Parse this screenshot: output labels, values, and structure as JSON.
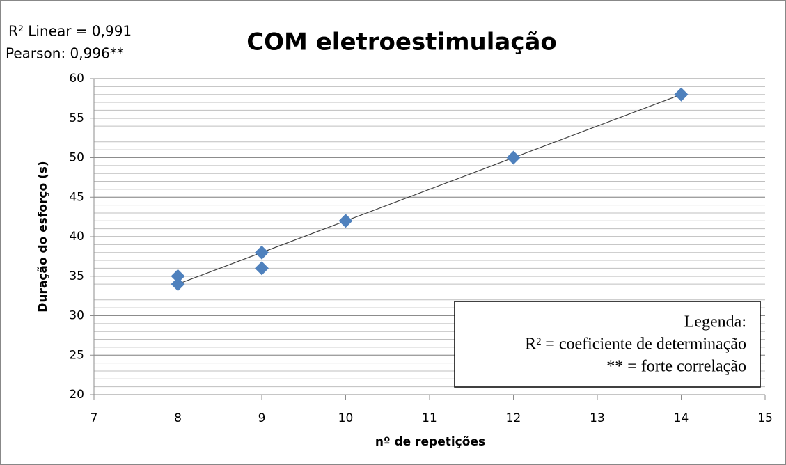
{
  "chart_data": {
    "type": "scatter",
    "title": "COM eletroestimulação",
    "annotations": [
      "R² Linear = 0,991",
      "Pearson: 0,996**"
    ],
    "legend_box": [
      "Legenda:",
      "R² = coeficiente de determinação",
      "** = forte correlação"
    ],
    "xlabel": "nº de repetições",
    "ylabel": "Duração do esforço (s)",
    "series": [
      {
        "name": "COM eletroestimulação",
        "color": "#4f81bd",
        "x": [
          8,
          8,
          9,
          9,
          10,
          12,
          14
        ],
        "values": [
          34,
          35,
          38,
          36,
          42,
          50,
          58
        ]
      }
    ],
    "trendline": {
      "x": [
        8,
        14
      ],
      "values": [
        34,
        58
      ],
      "color": "#404040"
    },
    "xlim": [
      7,
      15
    ],
    "xticks": [
      7,
      8,
      9,
      10,
      11,
      12,
      13,
      14,
      15
    ],
    "ylim": [
      20,
      60
    ],
    "yticks": [
      20,
      25,
      30,
      35,
      40,
      45,
      50,
      55,
      60
    ],
    "y_minor_step": 1,
    "grid": true
  }
}
